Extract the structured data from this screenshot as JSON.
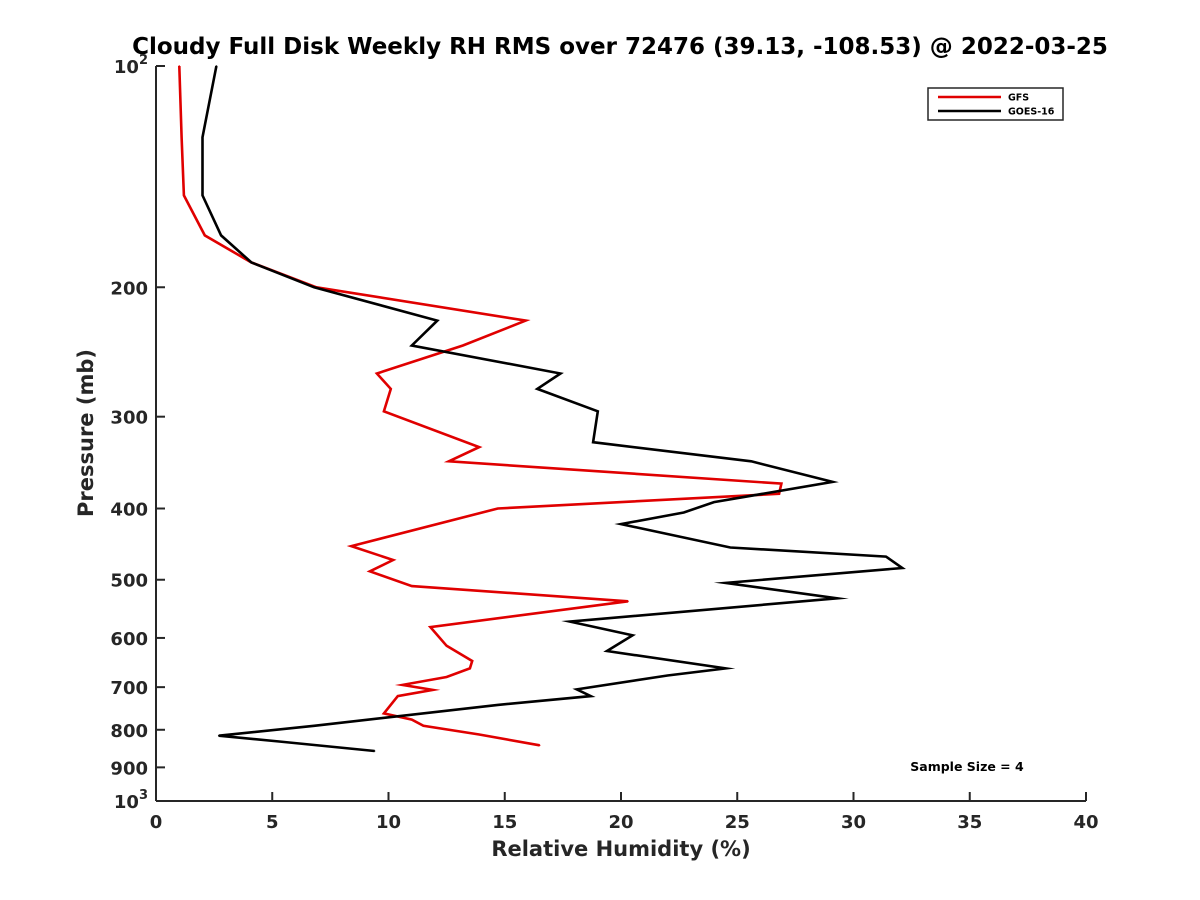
{
  "chart_data": {
    "type": "line",
    "title": "Cloudy Full Disk Weekly RH RMS over 72476 (39.13, -108.53) @ 2022-03-25",
    "xlabel": "Relative Humidity (%)",
    "ylabel": "Pressure (mb)",
    "xlim": [
      0,
      40
    ],
    "ylim": [
      100,
      1000
    ],
    "yscale": "log",
    "y_reversed": true,
    "grid": false,
    "legend_position": "top-right",
    "x_ticks": [
      "0",
      "5",
      "10",
      "15",
      "20",
      "25",
      "30",
      "35",
      "40"
    ],
    "y_ticks": [
      {
        "value": 100,
        "base": "10",
        "exp": "2"
      },
      {
        "value": 200,
        "label": "200"
      },
      {
        "value": 300,
        "label": "300"
      },
      {
        "value": 400,
        "label": "400"
      },
      {
        "value": 500,
        "label": "500"
      },
      {
        "value": 600,
        "label": "600"
      },
      {
        "value": 700,
        "label": "700"
      },
      {
        "value": 800,
        "label": "800"
      },
      {
        "value": 900,
        "label": "900"
      },
      {
        "value": 1000,
        "base": "10",
        "exp": "3"
      }
    ],
    "series": [
      {
        "name": "GFS",
        "color": "#e00000",
        "points": [
          [
            1.0,
            100
          ],
          [
            1.1,
            125
          ],
          [
            1.2,
            150
          ],
          [
            2.1,
            170
          ],
          [
            4.1,
            185
          ],
          [
            6.9,
            200
          ],
          [
            15.9,
            222
          ],
          [
            13.2,
            240
          ],
          [
            9.5,
            262
          ],
          [
            10.1,
            275
          ],
          [
            9.8,
            295
          ],
          [
            13.9,
            330
          ],
          [
            12.6,
            345
          ],
          [
            26.9,
            370
          ],
          [
            26.8,
            382
          ],
          [
            14.7,
            400
          ],
          [
            8.4,
            450
          ],
          [
            10.2,
            470
          ],
          [
            9.2,
            487
          ],
          [
            11.0,
            510
          ],
          [
            20.3,
            535
          ],
          [
            11.8,
            580
          ],
          [
            12.5,
            615
          ],
          [
            13.6,
            645
          ],
          [
            13.5,
            660
          ],
          [
            12.5,
            678
          ],
          [
            10.6,
            695
          ],
          [
            11.9,
            706
          ],
          [
            10.4,
            720
          ],
          [
            9.8,
            760
          ],
          [
            11.0,
            775
          ],
          [
            11.5,
            790
          ],
          [
            13.9,
            812
          ],
          [
            16.5,
            840
          ]
        ]
      },
      {
        "name": "GOES-16",
        "color": "#000000",
        "points": [
          [
            2.6,
            100
          ],
          [
            2.0,
            125
          ],
          [
            2.0,
            150
          ],
          [
            2.8,
            170
          ],
          [
            4.1,
            185
          ],
          [
            6.8,
            200
          ],
          [
            12.1,
            222
          ],
          [
            11.0,
            240
          ],
          [
            17.4,
            262
          ],
          [
            16.4,
            275
          ],
          [
            19.0,
            295
          ],
          [
            18.8,
            325
          ],
          [
            25.6,
            345
          ],
          [
            29.1,
            368
          ],
          [
            24.0,
            392
          ],
          [
            22.7,
            405
          ],
          [
            20.0,
            420
          ],
          [
            24.7,
            452
          ],
          [
            31.4,
            465
          ],
          [
            32.1,
            482
          ],
          [
            24.5,
            505
          ],
          [
            29.3,
            530
          ],
          [
            17.8,
            570
          ],
          [
            20.5,
            595
          ],
          [
            19.4,
            625
          ],
          [
            24.5,
            660
          ],
          [
            22.0,
            675
          ],
          [
            18.1,
            705
          ],
          [
            18.7,
            720
          ],
          [
            14.7,
            740
          ],
          [
            6.8,
            790
          ],
          [
            2.7,
            815
          ],
          [
            5.3,
            830
          ],
          [
            9.4,
            855
          ]
        ]
      }
    ],
    "annotation": "Sample Size = 4"
  }
}
